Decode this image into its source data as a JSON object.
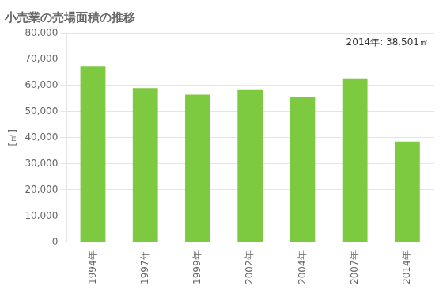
{
  "chart_data": {
    "type": "bar",
    "title": "小売業の売場面積の推移",
    "ylabel": "[㎡]",
    "annotation": "2014年: 38,501㎡",
    "categories": [
      "1994年",
      "1997年",
      "1999年",
      "2002年",
      "2004年",
      "2007年",
      "2014年"
    ],
    "values": [
      67500,
      59000,
      56500,
      58500,
      55500,
      62500,
      38501
    ],
    "color": "#7DC940",
    "ylim": [
      0,
      80000
    ],
    "yticks": [
      0,
      {
        "value": 10000,
        "label": "10,000"
      },
      {
        "value": 20000,
        "label": "20,000"
      },
      {
        "value": 30000,
        "label": "30,000"
      },
      {
        "value": 40000,
        "label": "40,000"
      },
      {
        "value": 50000,
        "label": "50,000"
      },
      {
        "value": 60000,
        "label": "60,000"
      },
      {
        "value": 70000,
        "label": "70,000"
      },
      {
        "value": 80000,
        "label": "80,000"
      }
    ],
    "grid": true
  }
}
